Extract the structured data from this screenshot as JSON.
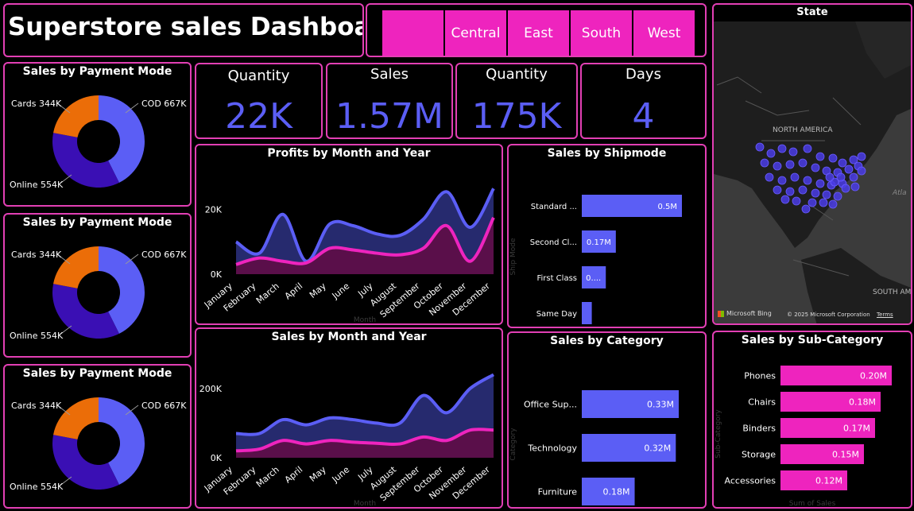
{
  "header": {
    "title": "Superstore sales Dashboard"
  },
  "slicer": {
    "items": [
      "",
      "Central",
      "East",
      "South",
      "West"
    ]
  },
  "kpis": [
    {
      "label": "Quantity",
      "value": "22K"
    },
    {
      "label": "Sales",
      "value": "1.57M"
    },
    {
      "label": "Quantity",
      "value": "175K"
    },
    {
      "label": "Days",
      "value": "4"
    }
  ],
  "map": {
    "title": "State",
    "labels": {
      "north_america": "NORTH AMERICA",
      "south_america": "SOUTH AM",
      "atlantic": "Atla"
    },
    "credit": "Microsoft Bing",
    "copyright": "© 2025 Microsoft Corporation",
    "terms": "Terms"
  },
  "colors": {
    "accent": "#e23fb4",
    "primary": "#5b5ef5",
    "pink": "#ee24be",
    "dark_blue": "#3a0fb4",
    "orange": "#eb6d08"
  },
  "chart_data": [
    {
      "id": "payment1",
      "type": "pie",
      "title": "Sales by Payment Mode",
      "labels": [
        "COD 667K",
        "Online 554K",
        "Cards 344K"
      ],
      "categories": [
        "COD",
        "Online",
        "Cards"
      ],
      "values": [
        667,
        554,
        344
      ],
      "colors": [
        "#5b5ef5",
        "#3a0fb4",
        "#eb6d08"
      ]
    },
    {
      "id": "payment2",
      "type": "pie",
      "title": "Sales by Payment Mode",
      "labels": [
        "COD 667K",
        "Online 554K",
        "Cards 344K"
      ],
      "categories": [
        "COD",
        "Online",
        "Cards"
      ],
      "values": [
        667,
        554,
        344
      ],
      "colors": [
        "#5b5ef5",
        "#3a0fb4",
        "#eb6d08"
      ]
    },
    {
      "id": "payment3",
      "type": "pie",
      "title": "Sales by Payment Mode",
      "labels": [
        "COD 667K",
        "Online 554K",
        "Cards 344K"
      ],
      "categories": [
        "COD",
        "Online",
        "Cards"
      ],
      "values": [
        667,
        554,
        344
      ],
      "colors": [
        "#5b5ef5",
        "#3a0fb4",
        "#eb6d08"
      ]
    },
    {
      "id": "profits",
      "type": "area",
      "title": "Profits by Month and Year",
      "xlabel": "Month",
      "categories": [
        "January",
        "February",
        "March",
        "April",
        "May",
        "June",
        "July",
        "August",
        "September",
        "October",
        "November",
        "December"
      ],
      "yticks": [
        "0K",
        "20K"
      ],
      "ytick_values": [
        0,
        20000
      ],
      "ylim": [
        0,
        30000
      ],
      "series": [
        {
          "values": [
            10000,
            6500,
            18500,
            4000,
            15500,
            15000,
            12500,
            12000,
            17000,
            25500,
            14500,
            26500
          ],
          "color": "#5b5ef5"
        },
        {
          "values": [
            3000,
            5000,
            4000,
            3500,
            8000,
            7500,
            6500,
            6000,
            8000,
            15000,
            4000,
            17500
          ],
          "color": "#ee24be"
        }
      ]
    },
    {
      "id": "sales_month",
      "type": "area",
      "title": "Sales by Month and Year",
      "xlabel": "Month",
      "categories": [
        "January",
        "February",
        "March",
        "April",
        "May",
        "June",
        "July",
        "August",
        "September",
        "October",
        "November",
        "December"
      ],
      "yticks": [
        "0K",
        "200K"
      ],
      "ytick_values": [
        0,
        200000
      ],
      "ylim": [
        0,
        280000
      ],
      "series": [
        {
          "values": [
            70000,
            70000,
            110000,
            95000,
            115000,
            110000,
            100000,
            100000,
            180000,
            130000,
            200000,
            240000
          ],
          "color": "#5b5ef5"
        },
        {
          "values": [
            20000,
            25000,
            50000,
            40000,
            50000,
            45000,
            42000,
            40000,
            60000,
            50000,
            80000,
            80000
          ],
          "color": "#ee24be"
        }
      ]
    },
    {
      "id": "shipmode",
      "type": "bar",
      "title": "Sales by Shipmode",
      "ylabel": "Ship Mode",
      "categories": [
        "Standard ...",
        "Second Cl...",
        "First Class",
        "Same Day"
      ],
      "values": [
        0.5,
        0.17,
        0.12,
        0.05
      ],
      "data_labels": [
        "0.5M",
        "0.17M",
        "0....",
        ""
      ],
      "xlim": [
        0,
        0.5
      ],
      "color": "#5b5ef5"
    },
    {
      "id": "category",
      "type": "bar",
      "title": "Sales by Category",
      "ylabel": "Category",
      "categories": [
        "Office Sup...",
        "Technology",
        "Furniture"
      ],
      "values": [
        0.33,
        0.32,
        0.18
      ],
      "data_labels": [
        "0.33M",
        "0.32M",
        "0.18M"
      ],
      "xlim": [
        0,
        0.33
      ],
      "color": "#5b5ef5"
    },
    {
      "id": "subcategory",
      "type": "bar",
      "title": "Sales by Sub-Category",
      "ylabel": "Sub-Category",
      "xlabel": "Sum of Sales",
      "categories": [
        "Phones",
        "Chairs",
        "Binders",
        "Storage",
        "Accessories"
      ],
      "values": [
        0.2,
        0.18,
        0.17,
        0.15,
        0.12
      ],
      "data_labels": [
        "0.20M",
        "0.18M",
        "0.17M",
        "0.15M",
        "0.12M"
      ],
      "xlim": [
        0,
        0.2
      ],
      "color": "#ee24be"
    }
  ]
}
